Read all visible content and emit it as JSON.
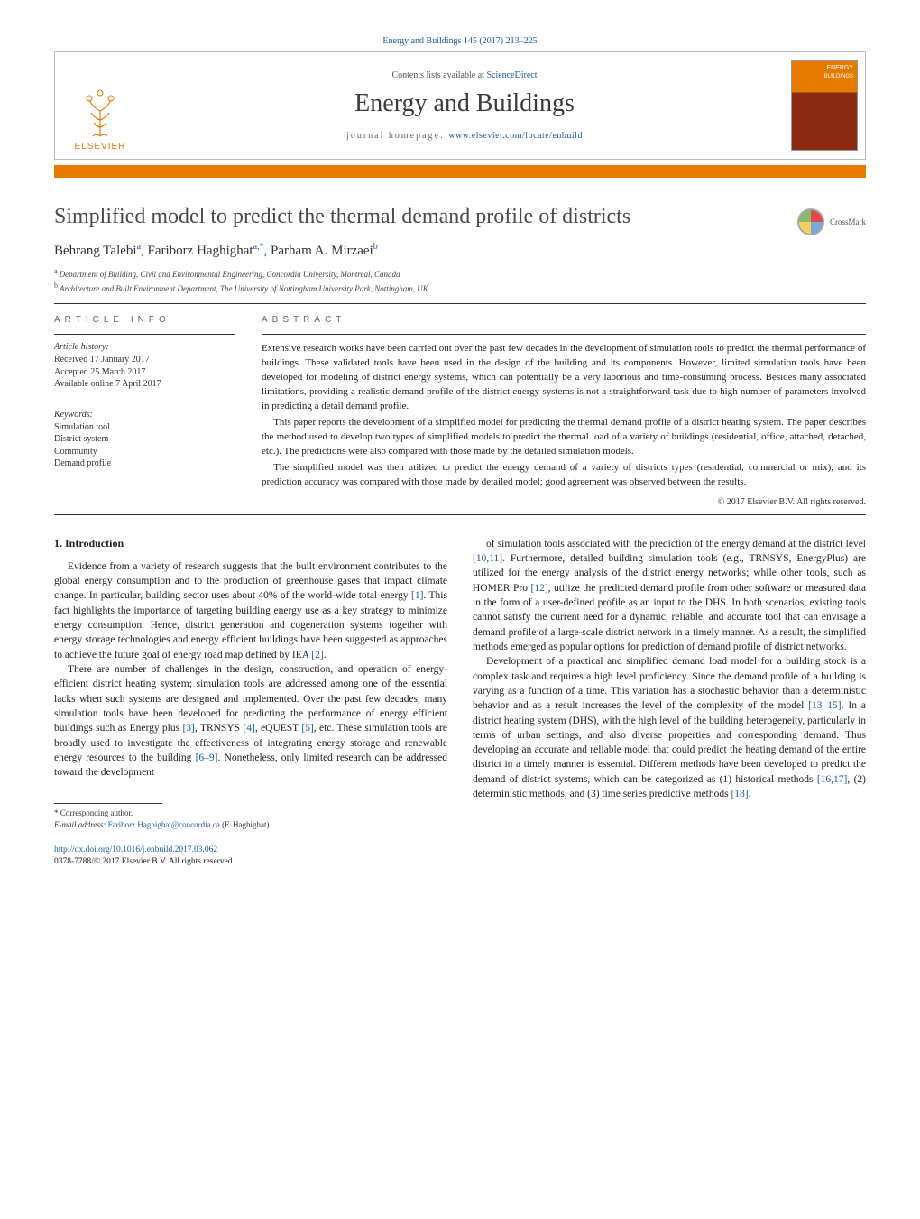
{
  "header": {
    "citation": "Energy and Buildings 145 (2017) 213–225",
    "contents_prefix": "Contents lists available at ",
    "contents_link": "ScienceDirect",
    "journal": "Energy and Buildings",
    "homepage_prefix": "journal homepage: ",
    "homepage_url": "www.elsevier.com/locate/enbuild",
    "publisher_logo_text": "ELSEVIER",
    "cover_colors": {
      "top": "#e67b00",
      "bottom": "#8a2a12"
    }
  },
  "orange_bar_color": "#e67b00",
  "article": {
    "title": "Simplified model to predict the thermal demand profile of districts",
    "crossmark_label": "CrossMark",
    "authors_html": "Behrang Talebi|a|, Fariborz Haghighat|a,*|, Parham A. Mirzaei|b|",
    "authors": [
      {
        "name": "Behrang Talebi",
        "sup": "a"
      },
      {
        "name": "Fariborz Haghighat",
        "sup": "a,*"
      },
      {
        "name": "Parham A. Mirzaei",
        "sup": "b"
      }
    ],
    "affiliations": [
      {
        "sup": "a",
        "text": "Department of Building, Civil and Environmental Engineering, Concordia University, Montreal, Canada"
      },
      {
        "sup": "b",
        "text": "Architecture and Built Environment Department, The University of Nottingham University Park, Nottingham, UK"
      }
    ]
  },
  "info": {
    "heading": "article info",
    "history_label": "Article history:",
    "history": [
      "Received 17 January 2017",
      "Accepted 25 March 2017",
      "Available online 7 April 2017"
    ],
    "keywords_label": "Keywords:",
    "keywords": [
      "Simulation tool",
      "District system",
      "Community",
      "Demand profile"
    ]
  },
  "abstract": {
    "heading": "abstract",
    "paras": [
      "Extensive research works have been carried out over the past few decades in the development of simulation tools to predict the thermal performance of buildings. These validated tools have been used in the design of the building and its components. However, limited simulation tools have been developed for modeling of district energy systems, which can potentially be a very laborious and time-consuming process. Besides many associated limitations, providing a realistic demand profile of the district energy systems is not a straightforward task due to high number of parameters involved in predicting a detail demand profile.",
      "This paper reports the development of a simplified model for predicting the thermal demand profile of a district heating system. The paper describes the method used to develop two types of simplified models to predict the thermal load of a variety of buildings (residential, office, attached, detached, etc.). The predictions were also compared with those made by the detailed simulation models.",
      "The simplified model was then utilized to predict the energy demand of a variety of districts types (residential, commercial or mix), and its prediction accuracy was compared with those made by detailed model; good agreement was observed between the results."
    ],
    "copyright": "© 2017 Elsevier B.V. All rights reserved."
  },
  "body": {
    "section_heading": "1.  Introduction",
    "left_paras": [
      "Evidence from a variety of research suggests that the built environment contributes to the global energy consumption and to the production of greenhouse gases that impact climate change. In particular, building sector uses about 40% of the world-wide total energy [1]. This fact highlights the importance of targeting building energy use as a key strategy to minimize energy consumption. Hence, district generation and cogeneration systems together with energy storage technologies and energy efficient buildings have been suggested as approaches to achieve the future goal of energy road map defined by IEA [2].",
      "There are number of challenges in the design, construction, and operation of energy-efficient district heating system; simulation tools are addressed among one of the essential lacks when such systems are designed and implemented. Over the past few decades, many simulation tools have been developed for predicting the performance of energy efficient buildings such as Energy plus [3], TRNSYS [4], eQUEST [5], etc. These simulation tools are broadly used to investigate the effectiveness of integrating energy storage and renewable energy resources to the building [6–9]. Nonetheless, only limited research can be addressed toward the development"
    ],
    "right_paras": [
      "of simulation tools associated with the prediction of the energy demand at the district level [10,11]. Furthermore, detailed building simulation tools (e.g., TRNSYS, EnergyPlus) are utilized for the energy analysis of the district energy networks; while other tools, such as HOMER Pro [12], utilize the predicted demand profile from other software or measured data in the form of a user-defined profile as an input to the DHS. In both scenarios, existing tools cannot satisfy the current need for a dynamic, reliable, and accurate tool that can envisage a demand profile of a large-scale district network in a timely manner. As a result, the simplified methods emerged as popular options for prediction of demand profile of district networks.",
      "Development of a practical and simplified demand load model for a building stock is a complex task and requires a high level proficiency. Since the demand profile of a building is varying as a function of a time. This variation has a stochastic behavior than a deterministic behavior and as a result increases the level of the complexity of the model [13–15]. In a district heating system (DHS), with the high level of the building heterogeneity, particularly in terms of urban settings, and also diverse properties and corresponding demand. Thus developing an accurate and reliable model that could predict the heating demand of the entire district in a timely manner is essential. Different methods have been developed to predict the demand of district systems, which can be categorized as (1) historical methods [16,17], (2) deterministic methods, and (3) time series predictive methods [18]."
    ],
    "refs": [
      "[1]",
      "[2]",
      "[3]",
      "[4]",
      "[5]",
      "[6–9]",
      "[10,11]",
      "[12]",
      "[13–15]",
      "[16,17]",
      "[18]"
    ]
  },
  "footnote": {
    "corresponding": "* Corresponding author.",
    "email_label": "E-mail address:",
    "email": "Fariborz.Haghighat@concordia.ca",
    "email_name": "(F. Haghighat)."
  },
  "doi": {
    "url": "http://dx.doi.org/10.1016/j.enbuild.2017.03.062",
    "issn_line": "0378-7788/© 2017 Elsevier B.V. All rights reserved."
  },
  "colors": {
    "link": "#1a5aa8",
    "accent": "#e67b00",
    "text": "#222222"
  }
}
